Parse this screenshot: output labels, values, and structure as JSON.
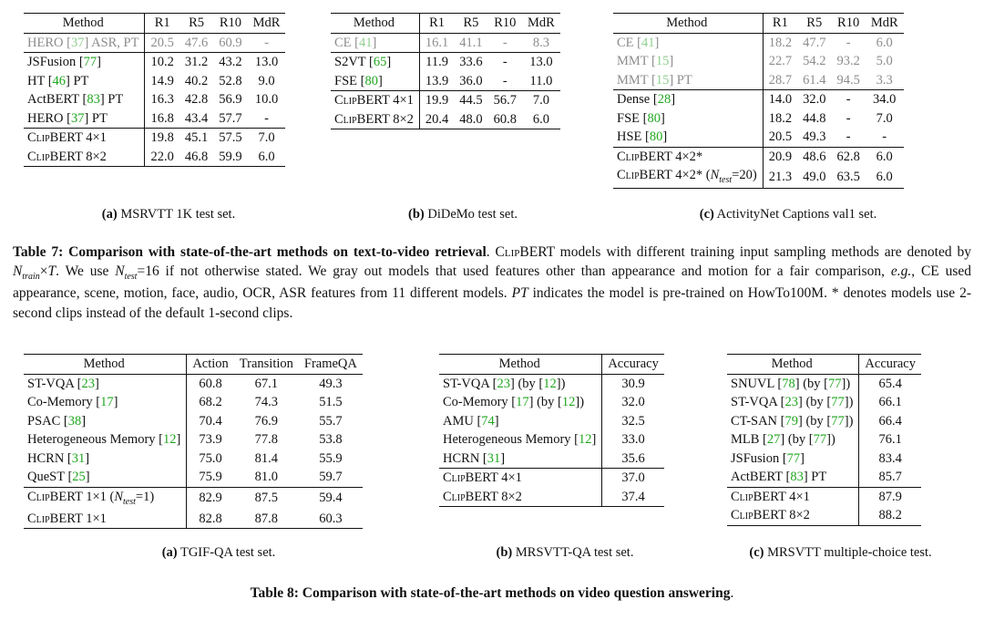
{
  "t7a": {
    "headers": [
      "Method",
      "R1",
      "R5",
      "R10",
      "MdR"
    ],
    "rows": [
      {
        "m": "HERO ",
        "c": "37",
        "s": " ASR, PT",
        "v": [
          "20.5",
          "47.6",
          "60.9",
          "-"
        ],
        "gray": true
      },
      {
        "m": "JSFusion ",
        "c": "77",
        "s": "",
        "v": [
          "10.2",
          "31.2",
          "43.2",
          "13.0"
        ],
        "sep": true
      },
      {
        "m": "HT ",
        "c": "46",
        "s": " PT",
        "v": [
          "14.9",
          "40.2",
          "52.8",
          "9.0"
        ]
      },
      {
        "m": "ActBERT ",
        "c": "83",
        "s": " PT",
        "v": [
          "16.3",
          "42.8",
          "56.9",
          "10.0"
        ]
      },
      {
        "m": "HERO ",
        "c": "37",
        "s": " PT",
        "v": [
          "16.8",
          "43.4",
          "57.7",
          "-"
        ],
        "bold": [
          2
        ]
      },
      {
        "m": "ClipBERT 4×1",
        "c": "",
        "s": "",
        "v": [
          "19.8",
          "45.1",
          "57.5",
          "7.0"
        ],
        "bold": [
          0,
          1,
          3
        ],
        "sep": true,
        "sc": true
      },
      {
        "m": "ClipBERT 8×2",
        "c": "",
        "s": "",
        "v": [
          "22.0",
          "46.8",
          "59.9",
          "6.0"
        ],
        "bold": [
          0,
          1,
          2,
          3
        ],
        "sc": true
      }
    ],
    "caption_label": "(a)",
    "caption": " MSRVTT 1K test set."
  },
  "t7b": {
    "headers": [
      "Method",
      "R1",
      "R5",
      "R10",
      "MdR"
    ],
    "rows": [
      {
        "m": "CE ",
        "c": "41",
        "s": "",
        "v": [
          "16.1",
          "41.1",
          "-",
          "8.3"
        ],
        "gray": true
      },
      {
        "m": "S2VT ",
        "c": "65",
        "s": "",
        "v": [
          "11.9",
          "33.6",
          "-",
          "13.0"
        ],
        "sep": true
      },
      {
        "m": "FSE ",
        "c": "80",
        "s": "",
        "v": [
          "13.9",
          "36.0",
          "-",
          "11.0"
        ]
      },
      {
        "m": "ClipBERT 4×1",
        "c": "",
        "s": "",
        "v": [
          "19.9",
          "44.5",
          "56.7",
          "7.0"
        ],
        "bold": [
          0,
          1,
          2,
          3
        ],
        "sep": true,
        "sc": true
      },
      {
        "m": "ClipBERT 8×2",
        "c": "",
        "s": "",
        "v": [
          "20.4",
          "48.0",
          "60.8",
          "6.0"
        ],
        "bold": [
          0,
          1,
          2,
          3
        ],
        "sc": true
      }
    ],
    "caption_label": "(b)",
    "caption": " DiDeMo test set."
  },
  "t7c": {
    "headers": [
      "Method",
      "R1",
      "R5",
      "R10",
      "MdR"
    ],
    "rows": [
      {
        "m": "CE ",
        "c": "41",
        "s": "",
        "v": [
          "18.2",
          "47.7",
          "-",
          "6.0"
        ],
        "gray": true
      },
      {
        "m": "MMT ",
        "c": "15",
        "s": "",
        "v": [
          "22.7",
          "54.2",
          "93.2",
          "5.0"
        ],
        "gray": true
      },
      {
        "m": "MMT ",
        "c": "15",
        "s": " PT",
        "v": [
          "28.7",
          "61.4",
          "94.5",
          "3.3"
        ],
        "gray": true
      },
      {
        "m": "Dense ",
        "c": "28",
        "s": "",
        "v": [
          "14.0",
          "32.0",
          "-",
          "34.0"
        ],
        "sep": true
      },
      {
        "m": "FSE ",
        "c": "80",
        "s": "",
        "v": [
          "18.2",
          "44.8",
          "-",
          "7.0"
        ]
      },
      {
        "m": "HSE ",
        "c": "80",
        "s": "",
        "v": [
          "20.5",
          "49.3",
          "-",
          "-"
        ],
        "bold": [
          1
        ]
      },
      {
        "m": "ClipBERT 4×2*",
        "c": "",
        "s": "",
        "v": [
          "20.9",
          "48.6",
          "62.8",
          "6.0"
        ],
        "bold": [
          0,
          2,
          3
        ],
        "sep": true,
        "sc": true
      },
      {
        "m": "ClipBERT 4×2* (Ntest=20)",
        "c": "",
        "s": "",
        "v": [
          "21.3",
          "49.0",
          "63.5",
          "6.0"
        ],
        "bold": [
          0,
          1,
          2,
          3
        ],
        "sc": true
      }
    ],
    "caption_label": "(c)",
    "caption": " ActivityNet Captions val1 set."
  },
  "table7_caption": {
    "label": "Table 7: Comparison with state-of-the-art methods on text-to-video retrieval",
    "text": ". ClipBERT models with different training input sampling methods are denoted by Ntrain×T. We use Ntest=16 if not otherwise stated. We gray out models that used features other than appearance and motion for a fair comparison, e.g., CE used appearance, scene, motion, face, audio, OCR, ASR features from 11 different models. PT indicates the model is pre-trained on HowTo100M. * denotes models use 2-second clips instead of the default 1-second clips."
  },
  "t8a": {
    "headers": [
      "Method",
      "Action",
      "Transition",
      "FrameQA"
    ],
    "rows": [
      {
        "m": "ST-VQA ",
        "c": "23",
        "s": "",
        "v": [
          "60.8",
          "67.1",
          "49.3"
        ]
      },
      {
        "m": "Co-Memory ",
        "c": "17",
        "s": "",
        "v": [
          "68.2",
          "74.3",
          "51.5"
        ]
      },
      {
        "m": "PSAC ",
        "c": "38",
        "s": "",
        "v": [
          "70.4",
          "76.9",
          "55.7"
        ]
      },
      {
        "m": "Heterogeneous Memory ",
        "c": "12",
        "s": "",
        "v": [
          "73.9",
          "77.8",
          "53.8"
        ]
      },
      {
        "m": "HCRN ",
        "c": "31",
        "s": "",
        "v": [
          "75.0",
          "81.4",
          "55.9"
        ]
      },
      {
        "m": "QueST ",
        "c": "25",
        "s": "",
        "v": [
          "75.9",
          "81.0",
          "59.7"
        ],
        "bold": [
          2
        ]
      },
      {
        "m": "ClipBERT 1×1 (Ntest=1)",
        "c": "",
        "s": "",
        "v": [
          "82.9",
          "87.5",
          "59.4"
        ],
        "bold": [
          0,
          1
        ],
        "sep": true,
        "sc": true
      },
      {
        "m": "ClipBERT 1×1",
        "c": "",
        "s": "",
        "v": [
          "82.8",
          "87.8",
          "60.3"
        ],
        "bold": [
          0,
          1,
          2
        ],
        "sc": true
      }
    ],
    "caption_label": "(a)",
    "caption": " TGIF-QA test set."
  },
  "t8b": {
    "headers": [
      "Method",
      "Accuracy"
    ],
    "rows": [
      {
        "m": "ST-VQA ",
        "c": "23",
        "s": " (by ",
        "c2": "12",
        "s2": ")",
        "v": [
          "30.9"
        ]
      },
      {
        "m": "Co-Memory ",
        "c": "17",
        "s": " (by ",
        "c2": "12",
        "s2": ")",
        "v": [
          "32.0"
        ]
      },
      {
        "m": "AMU ",
        "c": "74",
        "s": "",
        "v": [
          "32.5"
        ]
      },
      {
        "m": "Heterogeneous Memory ",
        "c": "12",
        "s": "",
        "v": [
          "33.0"
        ]
      },
      {
        "m": "HCRN ",
        "c": "31",
        "s": "",
        "v": [
          "35.6"
        ]
      },
      {
        "m": "ClipBERT 4×1",
        "c": "",
        "s": "",
        "v": [
          "37.0"
        ],
        "bold": [
          0
        ],
        "sep": true,
        "sc": true
      },
      {
        "m": "ClipBERT 8×2",
        "c": "",
        "s": "",
        "v": [
          "37.4"
        ],
        "bold": [
          0
        ],
        "sc": true
      }
    ],
    "caption_label": "(b)",
    "caption": " MRSVTT-QA test set."
  },
  "t8c": {
    "headers": [
      "Method",
      "Accuracy"
    ],
    "rows": [
      {
        "m": "SNUVL ",
        "c": "78",
        "s": " (by ",
        "c2": "77",
        "s2": ")",
        "v": [
          "65.4"
        ]
      },
      {
        "m": "ST-VQA ",
        "c": "23",
        "s": " (by ",
        "c2": "77",
        "s2": ")",
        "v": [
          "66.1"
        ]
      },
      {
        "m": "CT-SAN ",
        "c": "79",
        "s": " (by ",
        "c2": "77",
        "s2": ")",
        "v": [
          "66.4"
        ]
      },
      {
        "m": "MLB ",
        "c": "27",
        "s": " (by ",
        "c2": "77",
        "s2": ")",
        "v": [
          "76.1"
        ]
      },
      {
        "m": "JSFusion ",
        "c": "77",
        "s": "",
        "v": [
          "83.4"
        ]
      },
      {
        "m": "ActBERT ",
        "c": "83",
        "s": " PT",
        "v": [
          "85.7"
        ]
      },
      {
        "m": "ClipBERT 4×1",
        "c": "",
        "s": "",
        "v": [
          "87.9"
        ],
        "bold": [
          0
        ],
        "sep": true,
        "sc": true
      },
      {
        "m": "ClipBERT 8×2",
        "c": "",
        "s": "",
        "v": [
          "88.2"
        ],
        "bold": [
          0
        ],
        "sc": true
      }
    ],
    "caption_label": "(c)",
    "caption": " MRSVTT multiple-choice test."
  },
  "table8_caption": {
    "label": "Table 8: Comparison with state-of-the-art methods on video question answering",
    "text": "."
  }
}
